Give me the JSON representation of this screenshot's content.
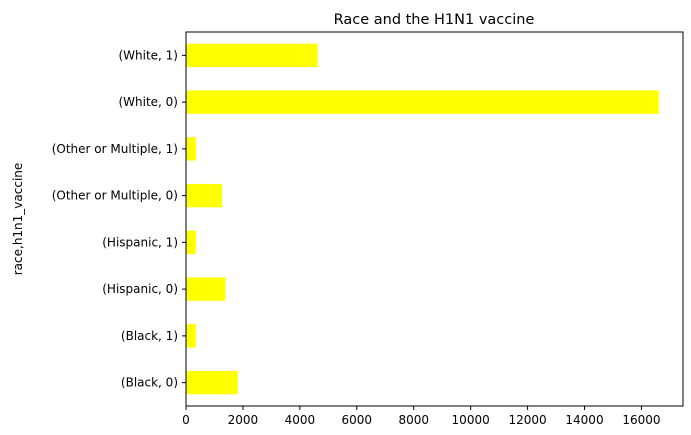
{
  "chart_data": {
    "type": "bar",
    "orientation": "horizontal",
    "title": "Race and the H1N1 vaccine",
    "xlabel": "",
    "ylabel": "race,h1n1_vaccine",
    "categories": [
      "(Black, 0)",
      "(Black, 1)",
      "(Hispanic, 0)",
      "(Hispanic, 1)",
      "(Other or Multiple, 0)",
      "(Other or Multiple, 1)",
      "(White, 0)",
      "(White, 1)"
    ],
    "values": [
      1795,
      323,
      1364,
      338,
      1266,
      336,
      16600,
      4600
    ],
    "xlim": [
      0,
      17460
    ],
    "xticks": [
      0,
      2000,
      4000,
      6000,
      8000,
      10000,
      12000,
      14000,
      16000
    ],
    "xtick_labels": [
      "0",
      "2000",
      "4000",
      "6000",
      "8000",
      "10000",
      "12000",
      "14000",
      "16000"
    ],
    "bar_color": "#ffff00",
    "grid": false,
    "legend": false
  }
}
